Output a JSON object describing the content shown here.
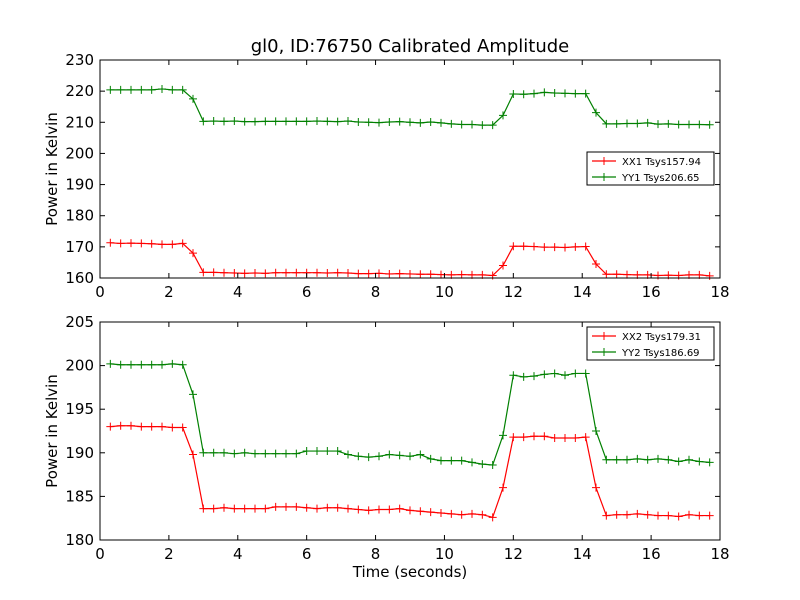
{
  "title": "gl0, ID:76750 Calibrated Amplitude",
  "chart_data": [
    {
      "type": "line",
      "ylabel": "Power in Kelvin",
      "xlabel": "",
      "xlim": [
        0,
        18
      ],
      "ylim": [
        160,
        230
      ],
      "xticks": [
        0,
        2,
        4,
        6,
        8,
        10,
        12,
        14,
        16,
        18
      ],
      "yticks": [
        160,
        170,
        180,
        190,
        200,
        210,
        220,
        230
      ],
      "legend": "center-right",
      "grid": false,
      "x": [
        0.3,
        0.6,
        0.9,
        1.2,
        1.5,
        1.8,
        2.1,
        2.4,
        2.7,
        3.0,
        3.3,
        3.6,
        3.9,
        4.2,
        4.5,
        4.8,
        5.1,
        5.4,
        5.7,
        6.0,
        6.3,
        6.6,
        6.9,
        7.2,
        7.5,
        7.8,
        8.1,
        8.4,
        8.7,
        9.0,
        9.3,
        9.6,
        9.9,
        10.2,
        10.5,
        10.8,
        11.1,
        11.4,
        11.7,
        12.0,
        12.3,
        12.6,
        12.9,
        13.2,
        13.5,
        13.8,
        14.1,
        14.4,
        14.7,
        15.0,
        15.3,
        15.6,
        15.9,
        16.2,
        16.5,
        16.8,
        17.1,
        17.4,
        17.7
      ],
      "series": [
        {
          "name": "XX1 Tsys157.94",
          "color": "#ff0000",
          "values": [
            171.3,
            171.1,
            171.2,
            171.1,
            171.0,
            170.8,
            170.8,
            171.1,
            168.0,
            161.8,
            161.8,
            161.7,
            161.6,
            161.5,
            161.6,
            161.5,
            161.7,
            161.7,
            161.7,
            161.7,
            161.7,
            161.6,
            161.7,
            161.6,
            161.4,
            161.4,
            161.5,
            161.3,
            161.4,
            161.3,
            161.2,
            161.2,
            161.1,
            161.0,
            161.1,
            161.0,
            161.0,
            160.8,
            164.0,
            170.2,
            170.2,
            170.1,
            169.9,
            169.9,
            169.8,
            170.0,
            170.1,
            164.5,
            161.2,
            161.2,
            161.1,
            161.0,
            161.0,
            160.8,
            160.9,
            160.8,
            161.0,
            161.0,
            160.7
          ]
        },
        {
          "name": "YY1 Tsys206.65",
          "color": "#008000",
          "values": [
            220.4,
            220.4,
            220.4,
            220.4,
            220.4,
            220.7,
            220.4,
            220.4,
            217.5,
            210.3,
            210.4,
            210.3,
            210.4,
            210.2,
            210.2,
            210.3,
            210.3,
            210.3,
            210.3,
            210.3,
            210.4,
            210.3,
            210.2,
            210.4,
            210.1,
            210.0,
            209.9,
            210.1,
            210.2,
            210.0,
            209.8,
            210.1,
            209.8,
            209.5,
            209.3,
            209.3,
            209.1,
            209.1,
            212.2,
            219.1,
            219.0,
            219.2,
            219.6,
            219.4,
            219.3,
            219.2,
            219.2,
            213.1,
            209.5,
            209.5,
            209.6,
            209.6,
            209.8,
            209.4,
            209.5,
            209.3,
            209.3,
            209.3,
            209.2
          ]
        }
      ]
    },
    {
      "type": "line",
      "ylabel": "Power in Kelvin",
      "xlabel": "Time (seconds)",
      "xlim": [
        0,
        18
      ],
      "ylim": [
        180,
        205
      ],
      "xticks": [
        0,
        2,
        4,
        6,
        8,
        10,
        12,
        14,
        16,
        18
      ],
      "yticks": [
        180,
        185,
        190,
        195,
        200,
        205
      ],
      "legend": "top-right",
      "grid": false,
      "x": [
        0.3,
        0.6,
        0.9,
        1.2,
        1.5,
        1.8,
        2.1,
        2.4,
        2.7,
        3.0,
        3.3,
        3.6,
        3.9,
        4.2,
        4.5,
        4.8,
        5.1,
        5.4,
        5.7,
        6.0,
        6.3,
        6.6,
        6.9,
        7.2,
        7.5,
        7.8,
        8.1,
        8.4,
        8.7,
        9.0,
        9.3,
        9.6,
        9.9,
        10.2,
        10.5,
        10.8,
        11.1,
        11.4,
        11.7,
        12.0,
        12.3,
        12.6,
        12.9,
        13.2,
        13.5,
        13.8,
        14.1,
        14.4,
        14.7,
        15.0,
        15.3,
        15.6,
        15.9,
        16.2,
        16.5,
        16.8,
        17.1,
        17.4,
        17.7
      ],
      "series": [
        {
          "name": "XX2 Tsys179.31",
          "color": "#ff0000",
          "values": [
            193.0,
            193.1,
            193.1,
            193.0,
            193.0,
            193.0,
            192.9,
            192.9,
            189.8,
            183.6,
            183.6,
            183.7,
            183.6,
            183.6,
            183.6,
            183.6,
            183.8,
            183.8,
            183.8,
            183.7,
            183.6,
            183.7,
            183.7,
            183.6,
            183.5,
            183.4,
            183.5,
            183.5,
            183.6,
            183.4,
            183.3,
            183.2,
            183.1,
            183.0,
            182.9,
            183.0,
            182.9,
            182.6,
            186.0,
            191.8,
            191.8,
            191.9,
            191.9,
            191.7,
            191.7,
            191.7,
            191.8,
            186.0,
            182.8,
            182.9,
            182.9,
            183.0,
            182.9,
            182.8,
            182.8,
            182.7,
            182.9,
            182.8,
            182.8
          ]
        },
        {
          "name": "YY2 Tsys186.69",
          "color": "#008000",
          "values": [
            200.2,
            200.1,
            200.1,
            200.1,
            200.1,
            200.1,
            200.2,
            200.1,
            196.7,
            190.0,
            190.0,
            190.0,
            189.9,
            190.0,
            189.9,
            189.9,
            189.9,
            189.9,
            189.9,
            190.2,
            190.2,
            190.2,
            190.2,
            189.8,
            189.6,
            189.5,
            189.6,
            189.8,
            189.7,
            189.6,
            189.8,
            189.3,
            189.1,
            189.1,
            189.1,
            188.9,
            188.7,
            188.6,
            192.0,
            198.9,
            198.7,
            198.8,
            199.0,
            199.1,
            198.9,
            199.1,
            199.1,
            192.5,
            189.2,
            189.2,
            189.2,
            189.3,
            189.2,
            189.3,
            189.2,
            189.0,
            189.2,
            189.0,
            188.9
          ]
        }
      ]
    }
  ]
}
